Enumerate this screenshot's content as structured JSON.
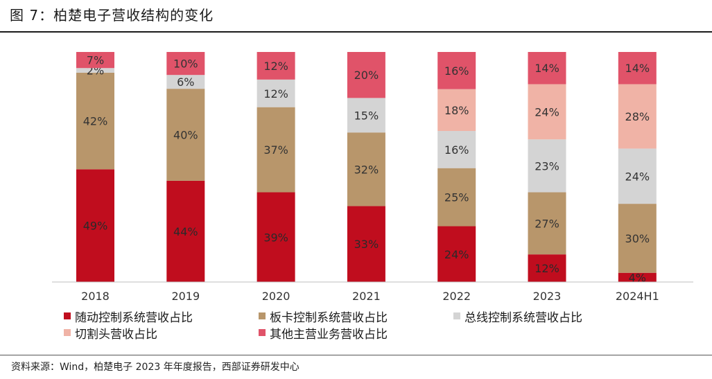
{
  "title": "图 7：柏楚电子营收结构的变化",
  "source": "资料来源：Wind，柏楚电子 2023 年年度报告，西部证券研发中心",
  "chart_data": {
    "type": "stacked-bar-100",
    "categories": [
      "2018",
      "2019",
      "2020",
      "2021",
      "2022",
      "2023",
      "2024H1"
    ],
    "series": [
      {
        "name": "随动控制系统营收占比",
        "color": "#C00D1E",
        "values": [
          49,
          44,
          39,
          33,
          24,
          12,
          4
        ],
        "labels": [
          "49%",
          "44%",
          "39%",
          "33%",
          "24%",
          "12%",
          "4%"
        ]
      },
      {
        "name": "板卡控制系统营收占比",
        "color": "#B8966B",
        "values": [
          42,
          40,
          37,
          32,
          25,
          27,
          30
        ],
        "labels": [
          "42%",
          "40%",
          "37%",
          "32%",
          "25%",
          "27%",
          "30%"
        ]
      },
      {
        "name": "总线控制系统营收占比",
        "color": "#D4D4D4",
        "values": [
          2,
          6,
          12,
          15,
          16,
          23,
          24
        ],
        "labels": [
          "2%",
          "6%",
          "12%",
          "15%",
          "16%",
          "23%",
          "24%"
        ]
      },
      {
        "name": "切割头营收占比",
        "color": "#F0B3A6",
        "values": [
          0,
          0,
          0,
          0,
          18,
          24,
          28
        ],
        "labels": [
          "",
          "",
          "",
          "",
          "18%",
          "24%",
          "28%"
        ]
      },
      {
        "name": "其他主营业务营收占比",
        "color": "#E05369",
        "values": [
          7,
          10,
          12,
          20,
          16,
          14,
          14
        ],
        "labels": [
          "7%",
          "10%",
          "12%",
          "20%",
          "16%",
          "14%",
          "14%"
        ]
      }
    ],
    "ylim": [
      0,
      100
    ],
    "legend_position": "bottom"
  }
}
